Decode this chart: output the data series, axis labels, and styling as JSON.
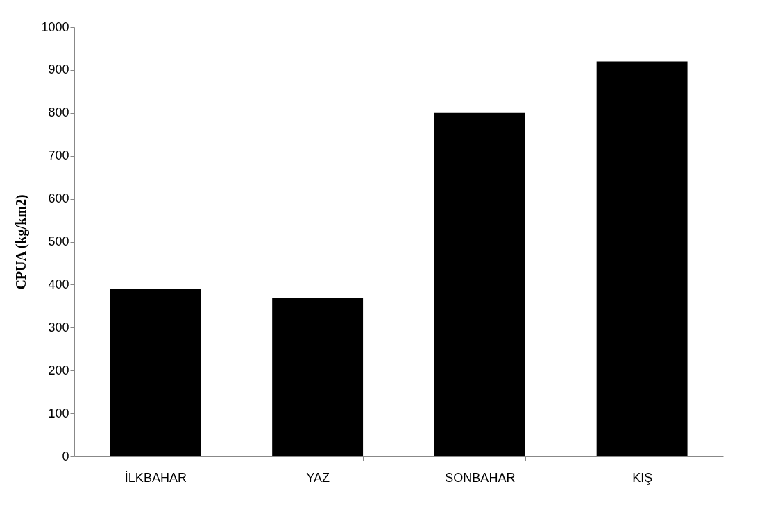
{
  "chart_data": {
    "type": "bar",
    "ylabel": "CPUA (kg/km2)",
    "categories": [
      "İLKBAHAR",
      "YAZ",
      "SONBAHAR",
      "KIŞ"
    ],
    "values": [
      390,
      370,
      800,
      920
    ],
    "color": "#000000",
    "ylim": [
      0,
      1000
    ],
    "yticks": [
      0,
      100,
      200,
      300,
      400,
      500,
      600,
      700,
      800,
      900,
      1000
    ],
    "grid": false
  }
}
